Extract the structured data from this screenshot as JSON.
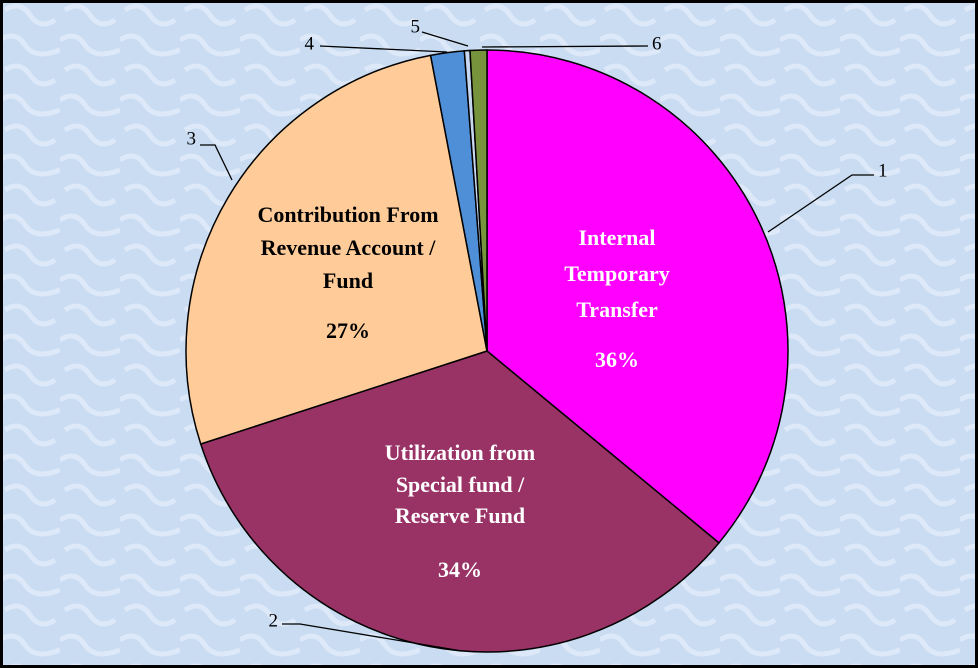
{
  "chart_data": {
    "type": "pie",
    "categories": [
      "1",
      "2",
      "3",
      "4",
      "5",
      "6"
    ],
    "slice_names": [
      [
        "Internal",
        "Temporary",
        "Transfer"
      ],
      [
        "Utilization from",
        "Special fund /",
        "Reserve Fund"
      ],
      [
        "Contribution From",
        "Revenue Account /",
        "Fund"
      ],
      null,
      null,
      null
    ],
    "values": [
      36,
      34,
      27,
      1.8,
      0.3,
      0.9
    ],
    "value_labels": [
      "36%",
      "34%",
      "27%",
      null,
      null,
      null
    ],
    "colors": [
      "#ff00ff",
      "#993366",
      "#ffcc99",
      "#4f8fd8",
      "#c8d8f0",
      "#77933c"
    ],
    "label_colors": [
      "#ffffff",
      "#ffffff",
      "#000000",
      null,
      null,
      null
    ]
  }
}
